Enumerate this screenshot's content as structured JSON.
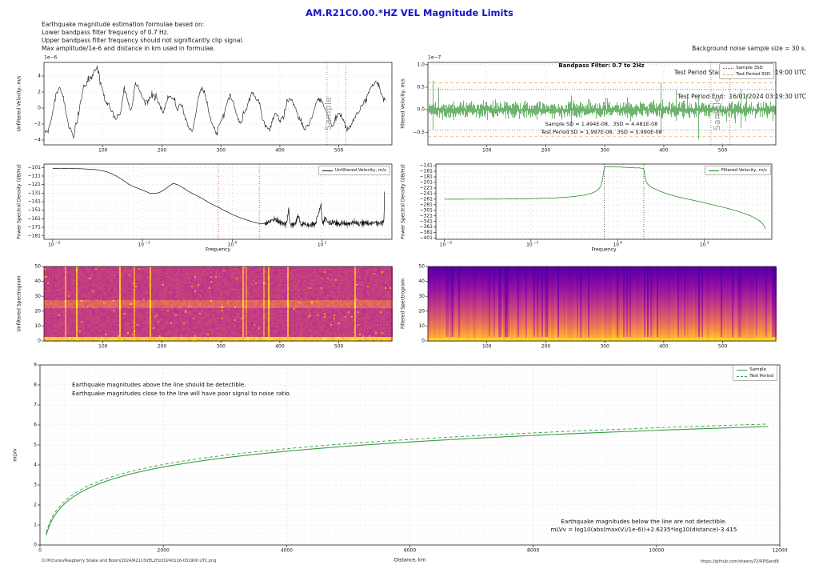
{
  "header": {
    "title": "AM.R21C0.00.*HZ VEL Magnitude Limits"
  },
  "info_left": [
    "Earthquake magnitude estimation formulae based on:",
    "Lower bandpass filter frequency of 0.7 Hz.",
    "Upper bandpass filter frequency should not significantly clip signal.",
    "Max amplitude/1e-6 and distance in km used in formulae."
  ],
  "info_right": [
    "Background noise sample size = 30 s.",
    "Test Period Start:  16/01/2024 03:19:00 UTC",
    "Test Period End:  16/01/2024 03:19:30 UTC"
  ],
  "footer": {
    "left": "D:/Pictures/Raspberry Shake and Boom/2024/R21C0VEL2Hz20240116-031900 UTC.png",
    "right": "https://github.com/sheeny72/RPiSandB"
  },
  "colors": {
    "title": "#1414c8",
    "trace_black": "#111111",
    "trace_green": "#118111",
    "mag_green": "#3c9c46",
    "sample_line": "#555555",
    "test_3sd": "#e8a33d",
    "bp_vline_left": "#cc3333",
    "bp_vline_right": "#444444",
    "grid": "#d9d9d9",
    "grid_minor": "#ececec",
    "frame": "#222222",
    "muted": "#9a9a9a",
    "plasma": [
      "#0d0887",
      "#46039f",
      "#7201a8",
      "#9c179e",
      "#bd3786",
      "#d8576b",
      "#ed7953",
      "#fb9f3a",
      "#fdca26",
      "#f0f921"
    ]
  },
  "chart_data": [
    {
      "id": "uw",
      "type": "line",
      "ylabel": "Unfiltered Velocity, m/s",
      "offset_label": "1e−6",
      "xlim": [
        0,
        590
      ],
      "ylim": [
        -4.6,
        5.7
      ],
      "xticks": [
        100,
        200,
        300,
        400,
        500
      ],
      "yticks": [
        -4,
        -2,
        0,
        2,
        4
      ],
      "ydecimals": 0,
      "grid": true,
      "sample_window": [
        480,
        512
      ],
      "sample_label": "Sample",
      "color_key": "trace_black",
      "points": [
        [
          2,
          -3.1
        ],
        [
          8,
          -2.6
        ],
        [
          14,
          -1
        ],
        [
          20,
          1.6
        ],
        [
          26,
          2.6
        ],
        [
          30,
          1.8
        ],
        [
          34,
          0.9
        ],
        [
          40,
          -1.8
        ],
        [
          46,
          -3.0
        ],
        [
          50,
          -3.7
        ],
        [
          56,
          -1.6
        ],
        [
          62,
          0.8
        ],
        [
          68,
          2.6
        ],
        [
          74,
          3.3
        ],
        [
          80,
          4.0
        ],
        [
          86,
          4.6
        ],
        [
          90,
          5.3
        ],
        [
          94,
          3.8
        ],
        [
          98,
          2.6
        ],
        [
          104,
          0.8
        ],
        [
          110,
          0.4
        ],
        [
          116,
          -0.6
        ],
        [
          122,
          -1.3
        ],
        [
          128,
          -1.0
        ],
        [
          132,
          0.2
        ],
        [
          136,
          2.4
        ],
        [
          140,
          1.6
        ],
        [
          146,
          -0.2
        ],
        [
          150,
          0.5
        ],
        [
          155,
          3.0
        ],
        [
          160,
          2.7
        ],
        [
          166,
          1.4
        ],
        [
          172,
          0.6
        ],
        [
          178,
          1.2
        ],
        [
          184,
          1.9
        ],
        [
          190,
          1.4
        ],
        [
          196,
          0.3
        ],
        [
          202,
          -0.6
        ],
        [
          208,
          0.9
        ],
        [
          214,
          1.6
        ],
        [
          220,
          1.2
        ],
        [
          226,
          -0.3
        ],
        [
          232,
          0.6
        ],
        [
          238,
          -0.8
        ],
        [
          244,
          -2.1
        ],
        [
          250,
          -3.3
        ],
        [
          256,
          -1.2
        ],
        [
          262,
          1.2
        ],
        [
          268,
          2.5
        ],
        [
          274,
          1.6
        ],
        [
          280,
          -0.8
        ],
        [
          286,
          -2.2
        ],
        [
          292,
          -3.1
        ],
        [
          298,
          -2.0
        ],
        [
          304,
          -1.2
        ],
        [
          310,
          0.6
        ],
        [
          316,
          1.6
        ],
        [
          322,
          0.6
        ],
        [
          328,
          -1.2
        ],
        [
          334,
          -1.9
        ],
        [
          340,
          -0.6
        ],
        [
          346,
          0.4
        ],
        [
          352,
          2.1
        ],
        [
          358,
          1.3
        ],
        [
          364,
          0.9
        ],
        [
          370,
          -1.2
        ],
        [
          376,
          -2.3
        ],
        [
          382,
          -2.9
        ],
        [
          388,
          -1.4
        ],
        [
          394,
          -0.6
        ],
        [
          400,
          -1.6
        ],
        [
          406,
          -1.0
        ],
        [
          412,
          0.9
        ],
        [
          418,
          1.3
        ],
        [
          424,
          0.4
        ],
        [
          430,
          -0.9
        ],
        [
          436,
          -1.7
        ],
        [
          442,
          -2.6
        ],
        [
          448,
          -2.3
        ],
        [
          454,
          -1.1
        ],
        [
          460,
          0.4
        ],
        [
          466,
          1.1
        ],
        [
          472,
          0.7
        ],
        [
          478,
          -0.4
        ],
        [
          484,
          -1.5
        ],
        [
          490,
          -2.4
        ],
        [
          496,
          -1.1
        ],
        [
          502,
          -0.7
        ],
        [
          508,
          -1.4
        ],
        [
          514,
          -2.7
        ],
        [
          520,
          -2.2
        ],
        [
          526,
          -1.3
        ],
        [
          532,
          -0.6
        ],
        [
          538,
          0.2
        ],
        [
          544,
          1.0
        ],
        [
          550,
          1.9
        ],
        [
          556,
          2.6
        ],
        [
          562,
          3.2
        ],
        [
          566,
          2.9
        ],
        [
          570,
          2.2
        ],
        [
          575,
          1.4
        ],
        [
          580,
          0.9
        ]
      ]
    },
    {
      "id": "fw",
      "type": "noise",
      "ylabel": "Filtered Velocity, m/s",
      "offset_label": "1e−7",
      "xlim": [
        0,
        590
      ],
      "ylim": [
        -0.78,
        1.05
      ],
      "xticks": [
        100,
        200,
        300,
        400,
        500
      ],
      "yticks": [
        -0.5,
        0.0,
        0.5,
        1.0
      ],
      "ydecimals": 1,
      "grid": true,
      "sample_window": [
        480,
        512
      ],
      "sample_label": "Sample",
      "color_key": "trace_green",
      "annotation": "Bandpass Filter: 0.7 to 2Hz",
      "sd_lines": [
        "Sample SD = 1.494E-08,  3SD = 4.481E-08",
        "Test Period SD = 1.997E-08,  3SD = 5.990E-08"
      ],
      "hlines": [
        {
          "y": 0.4481,
          "color_key": "sample_line",
          "dash": "dot"
        },
        {
          "y": -0.4481,
          "color_key": "sample_line",
          "dash": "dot"
        },
        {
          "y": 0.599,
          "color_key": "test_3sd",
          "dash": "dash"
        },
        {
          "y": -0.599,
          "color_key": "test_3sd",
          "dash": "dash"
        }
      ],
      "legend": [
        {
          "label": "Sample 3SD",
          "key": "sample_line",
          "dash": "dot"
        },
        {
          "label": "Test Period 3SD",
          "key": "test_3sd",
          "dash": "dash"
        }
      ],
      "noise_seed": 11
    },
    {
      "id": "pu",
      "type": "logline",
      "xlabel": "Frequency",
      "ylabel": "Power Spectral Density (dB/Hz)",
      "xlim": [
        0.008,
        60
      ],
      "ylim": [
        -185,
        -97
      ],
      "yticks": [
        -101,
        -111,
        -121,
        -131,
        -141,
        -151,
        -161,
        -171,
        -181
      ],
      "decades": [
        0.01,
        0.1,
        1,
        10
      ],
      "vlines": [
        0.7,
        2
      ],
      "vline_color_key": "bp_vline_left",
      "legend": [
        {
          "label": "Unfiltered Velocity, m/s",
          "key": "trace_black",
          "dash": "solid"
        }
      ],
      "color_key": "trace_black",
      "noise_from": 2.3,
      "noise_amp": 5.5,
      "points": [
        [
          0.01,
          -102
        ],
        [
          0.02,
          -102.4
        ],
        [
          0.03,
          -103.5
        ],
        [
          0.04,
          -106
        ],
        [
          0.05,
          -110.5
        ],
        [
          0.06,
          -115.5
        ],
        [
          0.07,
          -120.5
        ],
        [
          0.08,
          -123.5
        ],
        [
          0.09,
          -125.5
        ],
        [
          0.1,
          -127.5
        ],
        [
          0.12,
          -131
        ],
        [
          0.14,
          -131.5
        ],
        [
          0.16,
          -129.5
        ],
        [
          0.18,
          -126
        ],
        [
          0.2,
          -122.5
        ],
        [
          0.22,
          -119.5
        ],
        [
          0.25,
          -121.5
        ],
        [
          0.28,
          -124.5
        ],
        [
          0.32,
          -128.5
        ],
        [
          0.36,
          -131.5
        ],
        [
          0.42,
          -135
        ],
        [
          0.5,
          -139.5
        ],
        [
          0.58,
          -143.5
        ],
        [
          0.65,
          -146
        ],
        [
          0.7,
          -147.5
        ],
        [
          0.8,
          -151
        ],
        [
          0.9,
          -153.5
        ],
        [
          1.0,
          -156
        ],
        [
          1.2,
          -159.5
        ],
        [
          1.5,
          -163
        ],
        [
          1.8,
          -165.5
        ],
        [
          2.1,
          -167
        ],
        [
          2.4,
          -166
        ],
        [
          2.8,
          -162.5
        ],
        [
          3.0,
          -161
        ],
        [
          3.2,
          -163.5
        ],
        [
          3.6,
          -166.5
        ],
        [
          4.0,
          -168
        ],
        [
          4.25,
          -149
        ],
        [
          4.4,
          -168
        ],
        [
          5.0,
          -166.5
        ],
        [
          5.5,
          -157
        ],
        [
          5.8,
          -168.5
        ],
        [
          6.5,
          -167
        ],
        [
          7.5,
          -168
        ],
        [
          8.5,
          -166.5
        ],
        [
          9.7,
          -142.5
        ],
        [
          10.1,
          -167.5
        ],
        [
          11,
          -159
        ],
        [
          12,
          -166.5
        ],
        [
          13.5,
          -164.5
        ],
        [
          15,
          -167.5
        ],
        [
          17,
          -165.5
        ],
        [
          20,
          -167.5
        ],
        [
          23,
          -164.5
        ],
        [
          26,
          -167
        ],
        [
          30,
          -165.5
        ],
        [
          34,
          -167.5
        ],
        [
          38,
          -165
        ],
        [
          42,
          -167.5
        ],
        [
          46,
          -166
        ],
        [
          49,
          -165
        ],
        [
          49.8,
          -121.5
        ],
        [
          50.5,
          -148
        ]
      ]
    },
    {
      "id": "pf",
      "type": "logline",
      "xlabel": "Frequency",
      "ylabel": "Power Spectral Density (dB/Hz)",
      "xlim": [
        0.008,
        60
      ],
      "ylim": [
        -405,
        -135
      ],
      "yticks": [
        -141,
        -161,
        -181,
        -201,
        -221,
        -241,
        -261,
        -281,
        -301,
        -321,
        -341,
        -361,
        -381,
        -401
      ],
      "decades": [
        0.01,
        0.1,
        1,
        10
      ],
      "vlines": [
        0.7,
        2
      ],
      "vline_color_key": "bp_vline_right",
      "legend": [
        {
          "label": "Filtered Velocity, m/s",
          "key": "trace_green",
          "dash": "solid"
        }
      ],
      "color_key": "trace_green",
      "noise_from": 999,
      "noise_amp": 0,
      "points": [
        [
          0.01,
          -261
        ],
        [
          0.05,
          -260.5
        ],
        [
          0.1,
          -259
        ],
        [
          0.15,
          -257.5
        ],
        [
          0.2,
          -256
        ],
        [
          0.25,
          -254
        ],
        [
          0.3,
          -252
        ],
        [
          0.35,
          -249.5
        ],
        [
          0.4,
          -247
        ],
        [
          0.45,
          -243.5
        ],
        [
          0.5,
          -239.5
        ],
        [
          0.55,
          -234
        ],
        [
          0.6,
          -226
        ],
        [
          0.64,
          -214
        ],
        [
          0.67,
          -190
        ],
        [
          0.69,
          -160
        ],
        [
          0.71,
          -146
        ],
        [
          0.74,
          -143.5
        ],
        [
          0.78,
          -145
        ],
        [
          0.83,
          -143.8
        ],
        [
          0.88,
          -145.5
        ],
        [
          0.94,
          -144.5
        ],
        [
          1.0,
          -146
        ],
        [
          1.08,
          -145.5
        ],
        [
          1.16,
          -147
        ],
        [
          1.25,
          -146.5
        ],
        [
          1.35,
          -148
        ],
        [
          1.45,
          -147.5
        ],
        [
          1.6,
          -149
        ],
        [
          1.75,
          -148.5
        ],
        [
          1.88,
          -150
        ],
        [
          1.98,
          -150.5
        ],
        [
          2.02,
          -158
        ],
        [
          2.06,
          -178
        ],
        [
          2.12,
          -196
        ],
        [
          2.2,
          -206
        ],
        [
          2.35,
          -214
        ],
        [
          2.55,
          -221
        ],
        [
          2.8,
          -227
        ],
        [
          3.1,
          -233
        ],
        [
          3.5,
          -239
        ],
        [
          4.0,
          -245
        ],
        [
          4.6,
          -250
        ],
        [
          5.3,
          -255
        ],
        [
          6.2,
          -260
        ],
        [
          7.2,
          -264
        ],
        [
          8.5,
          -269
        ],
        [
          10,
          -274
        ],
        [
          12,
          -280
        ],
        [
          14.5,
          -286
        ],
        [
          17,
          -291
        ],
        [
          20,
          -297
        ],
        [
          24,
          -304
        ],
        [
          28,
          -311
        ],
        [
          33,
          -319
        ],
        [
          38,
          -328
        ],
        [
          43,
          -338
        ],
        [
          47,
          -349
        ],
        [
          49.5,
          -360
        ],
        [
          51,
          -371
        ]
      ]
    },
    {
      "id": "su",
      "type": "heatmap",
      "ylabel": "Unfiltered Spectrogram",
      "style": "patchy",
      "seed": 5,
      "xlim": [
        0,
        590
      ],
      "ylim": [
        0,
        50
      ],
      "xticks": [
        100,
        200,
        300,
        400,
        500
      ],
      "yticks": [
        0,
        10,
        20,
        30,
        40,
        50
      ],
      "colormap": "plasma"
    },
    {
      "id": "sf",
      "type": "heatmap",
      "ylabel": "Filtered Spectrogram",
      "style": "gradient",
      "seed": 9,
      "xlim": [
        0,
        590
      ],
      "ylim": [
        0,
        50
      ],
      "xticks": [
        100,
        200,
        300,
        400,
        500
      ],
      "yticks": [
        0,
        10,
        20,
        30,
        40,
        50
      ],
      "colormap": "plasma"
    },
    {
      "id": "mg",
      "type": "formula",
      "xlabel": "Distance, km",
      "ylabel": "mLVv",
      "xlim": [
        0,
        12000
      ],
      "ylim": [
        0,
        9
      ],
      "xticks": [
        0,
        2000,
        4000,
        6000,
        8000,
        10000,
        12000
      ],
      "yticks": [
        0,
        1,
        2,
        3,
        4,
        5,
        6,
        7,
        8,
        9
      ],
      "grid_minor": {
        "x_step": 400,
        "y_step": 0.2
      },
      "formula": {
        "coef": 2.6235,
        "offset": -3.415,
        "x_start": 100,
        "x_end": 12000
      },
      "series": [
        {
          "name": "Sample",
          "max_v_ratio": 0.04481,
          "dash": "solid"
        },
        {
          "name": "Test Period",
          "max_v_ratio": 0.0599,
          "dash": "dash"
        }
      ],
      "legend": [
        {
          "label": "Sample",
          "key": "mag_green",
          "dash": "solid"
        },
        {
          "label": "Test Period",
          "key": "mag_green",
          "dash": "dash"
        }
      ],
      "annotations": {
        "top": [
          "Earthquake magnitudes above the line should be detectible.",
          "Earthquake magnitudes close to the line will have poor signal to noise ratio."
        ],
        "bottom": [
          "Earthquake magnitudes below the line are not detectible.",
          "mLVv = log10(abs(max(V)/1e-6))+2.6235*log10(distance)-3.415"
        ]
      },
      "color_key": "mag_green"
    }
  ]
}
